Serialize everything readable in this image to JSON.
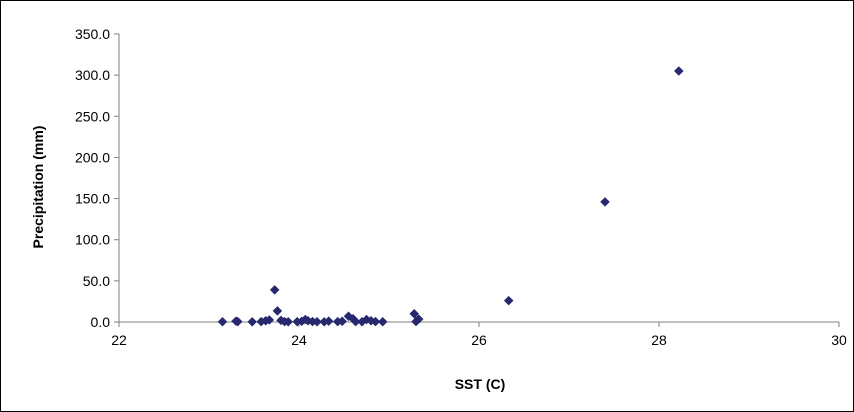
{
  "chart_data": {
    "type": "scatter",
    "title": "",
    "xlabel": "SST (C)",
    "ylabel": "Precipitation (mm)",
    "xlim": [
      22,
      30
    ],
    "ylim": [
      0,
      350
    ],
    "x_ticks": [
      22,
      24,
      26,
      28,
      30
    ],
    "y_ticks": [
      0,
      50,
      100,
      150,
      200,
      250,
      300,
      350
    ],
    "x_tick_labels": [
      "22",
      "24",
      "26",
      "28",
      "30"
    ],
    "y_tick_labels": [
      "0.0",
      "50.0",
      "100.0",
      "150.0",
      "200.0",
      "250.0",
      "300.0",
      "350.0"
    ],
    "grid": false,
    "legend": "none",
    "marker": "diamond",
    "marker_color": "#27286d",
    "series": [
      {
        "points": [
          [
            23.15,
            0.3
          ],
          [
            23.3,
            1.0
          ],
          [
            23.32,
            0.5
          ],
          [
            23.48,
            0.2
          ],
          [
            23.58,
            0.5
          ],
          [
            23.63,
            1.5
          ],
          [
            23.67,
            2.5
          ],
          [
            23.73,
            39.0
          ],
          [
            23.76,
            13.5
          ],
          [
            23.8,
            2.0
          ],
          [
            23.84,
            0.5
          ],
          [
            23.88,
            0.3
          ],
          [
            23.98,
            0.4
          ],
          [
            24.03,
            0.8
          ],
          [
            24.07,
            3.0
          ],
          [
            24.1,
            1.5
          ],
          [
            24.15,
            0.5
          ],
          [
            24.2,
            0.3
          ],
          [
            24.28,
            0.2
          ],
          [
            24.33,
            1.0
          ],
          [
            24.43,
            0.5
          ],
          [
            24.48,
            0.8
          ],
          [
            24.55,
            7.0
          ],
          [
            24.6,
            4.0
          ],
          [
            24.63,
            0.5
          ],
          [
            24.7,
            0.3
          ],
          [
            24.75,
            3.0
          ],
          [
            24.8,
            1.5
          ],
          [
            24.85,
            0.5
          ],
          [
            24.93,
            0.3
          ],
          [
            25.28,
            10.0
          ],
          [
            25.3,
            0.5
          ],
          [
            25.33,
            3.5
          ],
          [
            26.33,
            26.0
          ],
          [
            27.4,
            146.0
          ],
          [
            28.22,
            305.0
          ]
        ]
      }
    ]
  },
  "colors": {
    "axis": "#808080",
    "marker": "#27286d",
    "frame": "#000000"
  }
}
